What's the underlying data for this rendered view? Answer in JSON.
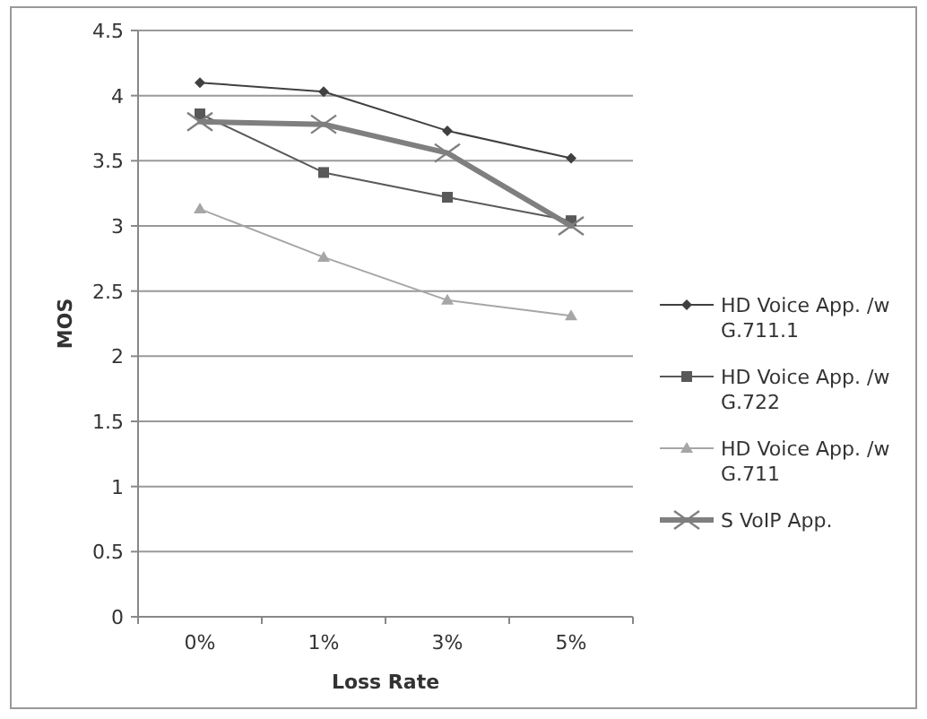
{
  "chart_data": {
    "type": "line",
    "xlabel": "Loss Rate",
    "ylabel": "MOS",
    "categories": [
      "0%",
      "1%",
      "3%",
      "5%"
    ],
    "ylim": [
      0,
      4.5
    ],
    "yticks": [
      0,
      0.5,
      1,
      1.5,
      2,
      2.5,
      3,
      3.5,
      4,
      4.5
    ],
    "grid": "y",
    "legend": "right",
    "series": [
      {
        "name": "HD Voice App. /w G.711.1",
        "color": "#404040",
        "marker": "diamond",
        "values": [
          4.1,
          4.03,
          3.73,
          3.52
        ]
      },
      {
        "name": "HD Voice App. /w G.722",
        "color": "#595959",
        "marker": "square",
        "values": [
          3.86,
          3.41,
          3.22,
          3.04
        ]
      },
      {
        "name": "HD Voice App. /w G.711",
        "color": "#a6a6a6",
        "marker": "triangle",
        "values": [
          3.13,
          2.76,
          2.43,
          2.31
        ]
      },
      {
        "name": "S VoIP App.",
        "color": "#7f7f7f",
        "marker": "cross",
        "values": [
          3.8,
          3.78,
          3.56,
          3.0
        ]
      }
    ]
  }
}
